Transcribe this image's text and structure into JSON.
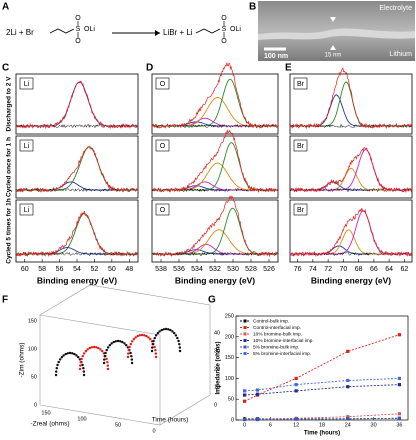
{
  "panel_labels": [
    "A",
    "B",
    "C",
    "D",
    "E",
    "F",
    "G"
  ],
  "scheme": {
    "reactant": "2Li + Br",
    "product": "LiBr + Li",
    "sulfur": "S",
    "oxygen": "O",
    "end_group": "OLi"
  },
  "micrograph": {
    "top": "Electrolyte",
    "bottom": "Lithium",
    "scale_bar": "100 nm",
    "thickness": "15 nm"
  },
  "xps": {
    "x_label": "Binding energy (eV)",
    "rows": [
      "Discharged to 2 V",
      "Cycled once for 1 h",
      "Cycled 5 times for 1h"
    ],
    "columns": [
      {
        "element": "Li",
        "xticks": [
          60,
          58,
          56,
          54,
          52,
          50,
          48
        ]
      },
      {
        "element": "O",
        "xticks": [
          538,
          536,
          534,
          532,
          530,
          528,
          526
        ]
      },
      {
        "element": "Br",
        "xticks": [
          76,
          74,
          72,
          70,
          68,
          66,
          64,
          62
        ]
      }
    ]
  },
  "nyquist": {
    "z_im_label": "-Zim (ohms)",
    "z_real_label": "-Zreal (ohms)",
    "time_label": "Time (hours)",
    "z_im_ticks": [
      0,
      50,
      100,
      150
    ],
    "z_real_ticks": [
      150,
      100,
      50,
      0
    ],
    "time_ticks": [
      0,
      10,
      20,
      30,
      40
    ]
  },
  "chart_data": {
    "type": "line",
    "x_label": "Time (hours)",
    "y_label": "Impedance (ohms)",
    "x": [
      0,
      3,
      12,
      24,
      36
    ],
    "series": [
      {
        "name": "Control-bulk imp.",
        "color": "#000000",
        "values": [
          3,
          3,
          3,
          3,
          4
        ]
      },
      {
        "name": "Control-interfacial imp.",
        "color": "#e0201b",
        "values": [
          45,
          60,
          100,
          165,
          205
        ]
      },
      {
        "name": "10% bromine-bulk imp.",
        "color": "#e05555",
        "values": [
          2,
          2,
          4,
          8,
          15
        ]
      },
      {
        "name": "10% bromine-interfacial imp.",
        "color": "#1f2d8c",
        "values": [
          60,
          62,
          70,
          80,
          85
        ]
      },
      {
        "name": "5% bromine-bulk imp.",
        "color": "#3355cc",
        "values": [
          1,
          1,
          2,
          3,
          4
        ]
      },
      {
        "name": "5% bromine-interfacial imp.",
        "color": "#4169e1",
        "values": [
          70,
          72,
          85,
          95,
          100
        ]
      }
    ],
    "xlim": [
      -2,
      38
    ],
    "ylim": [
      0,
      250
    ],
    "xticks": [
      0,
      6,
      12,
      18,
      24,
      30,
      36
    ],
    "yticks": [
      0,
      50,
      100,
      150,
      200,
      250
    ],
    "legend": "upper-left"
  }
}
